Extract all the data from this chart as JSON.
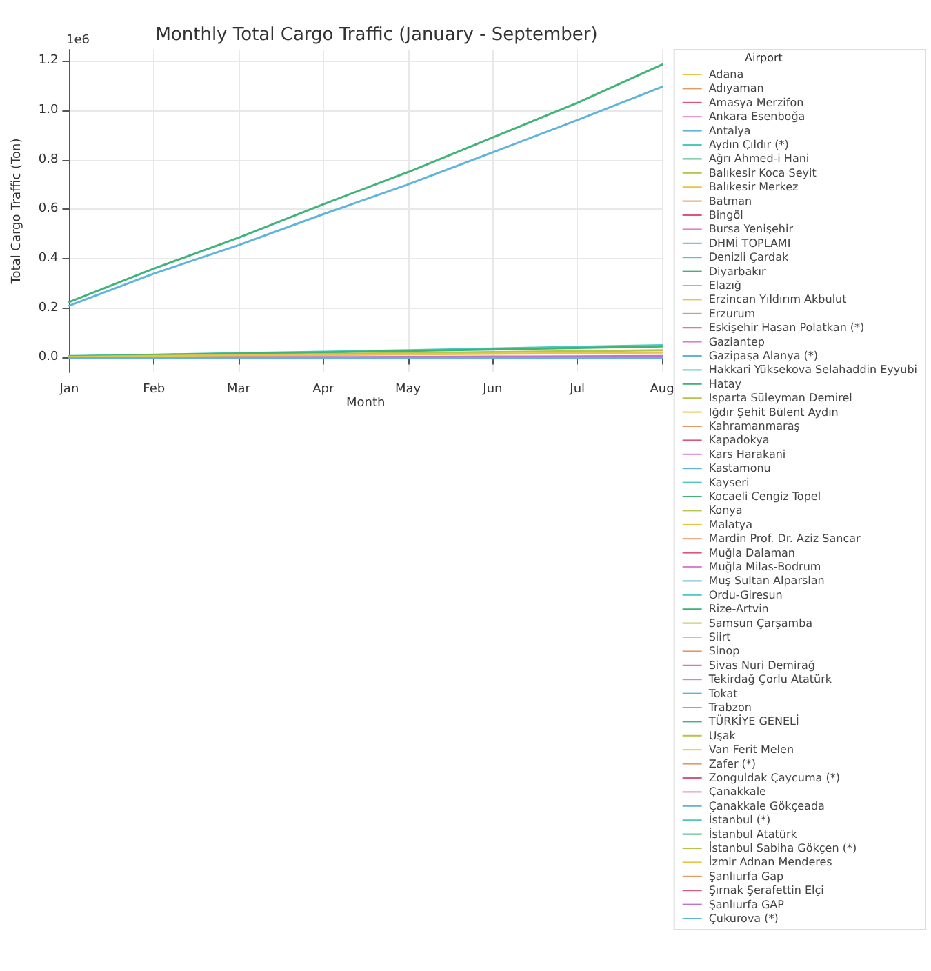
{
  "chart_data": {
    "type": "line",
    "title": "Monthly Total Cargo Traffic (January - September)",
    "xlabel": "Month",
    "ylabel": "Total Cargo Traffic (Ton)",
    "legend_title": "Airport",
    "annotations": [
      "1e6"
    ],
    "categories": [
      "Jan",
      "Feb",
      "Mar",
      "Apr",
      "May",
      "Jun",
      "Jul",
      "Aug"
    ],
    "ylim": [
      -0.06,
      1.245
    ],
    "yticks": [
      {
        "value": 0,
        "label": "0.0"
      },
      {
        "value": 0.2,
        "label": "0.2"
      },
      {
        "value": 0.4,
        "label": "0.4"
      },
      {
        "value": 0.6,
        "label": "0.6"
      },
      {
        "value": 0.8,
        "label": "0.8"
      },
      {
        "value": 1,
        "label": "1.0"
      },
      {
        "value": 1.2,
        "label": "1.2"
      }
    ],
    "grid": true,
    "legend": "right",
    "marker": "none",
    "line_style": "solid",
    "series": [
      {
        "name": "Adana",
        "color": "#e8c547",
        "values": [
          null,
          null,
          null,
          null,
          null,
          null,
          null,
          null
        ]
      },
      {
        "name": "Adıyaman",
        "color": "#e59866",
        "values": [
          null,
          null,
          null,
          null,
          null,
          null,
          null,
          null
        ]
      },
      {
        "name": "Amasya Merzifon",
        "color": "#d9577a",
        "values": [
          null,
          null,
          null,
          null,
          null,
          null,
          null,
          null
        ]
      },
      {
        "name": "Ankara Esenboğa",
        "color": "#e07fcf",
        "values": [
          null,
          null,
          null,
          null,
          null,
          null,
          null,
          null
        ]
      },
      {
        "name": "Antalya",
        "color": "#5fb4d9",
        "values": [
          null,
          null,
          null,
          null,
          null,
          null,
          null,
          null
        ]
      },
      {
        "name": "Aydın Çıldır (*)",
        "color": "#4ec9c0",
        "values": [
          null,
          null,
          null,
          null,
          null,
          null,
          null,
          null
        ]
      },
      {
        "name": "Ağrı Ahmed-i Hani",
        "color": "#3fb37a",
        "values": [
          null,
          null,
          null,
          null,
          null,
          null,
          null,
          null
        ]
      },
      {
        "name": "Balıkesir Koca Seyit",
        "color": "#b5c44a",
        "values": [
          null,
          null,
          null,
          null,
          null,
          null,
          null,
          null
        ]
      },
      {
        "name": "Balıkesir Merkez",
        "color": "#e8c547",
        "values": [
          null,
          null,
          null,
          null,
          null,
          null,
          null,
          null
        ]
      },
      {
        "name": "Batman",
        "color": "#e59866",
        "values": [
          null,
          null,
          null,
          null,
          null,
          null,
          null,
          null
        ]
      },
      {
        "name": "Bingöl",
        "color": "#d9577a",
        "values": [
          null,
          null,
          null,
          null,
          null,
          null,
          null,
          null
        ]
      },
      {
        "name": "Bursa Yenişehir",
        "color": "#e07fcf",
        "values": [
          null,
          null,
          null,
          null,
          null,
          null,
          null,
          null
        ]
      },
      {
        "name": "DHMİ TOPLAMI",
        "color": "#5fb4d9",
        "values": [
          0.21,
          0.34,
          0.455,
          0.58,
          0.7,
          0.83,
          0.96,
          1.095
        ]
      },
      {
        "name": "Denizli Çardak",
        "color": "#4ec9c0",
        "values": [
          null,
          null,
          null,
          null,
          null,
          null,
          null,
          null
        ]
      },
      {
        "name": "Diyarbakır",
        "color": "#3fb37a",
        "values": [
          null,
          null,
          null,
          null,
          null,
          null,
          null,
          null
        ]
      },
      {
        "name": "Elazığ",
        "color": "#b5c44a",
        "values": [
          null,
          null,
          null,
          null,
          null,
          null,
          null,
          null
        ]
      },
      {
        "name": "Erzincan Yıldırım Akbulut",
        "color": "#e8c547",
        "values": [
          null,
          null,
          null,
          null,
          null,
          null,
          null,
          null
        ]
      },
      {
        "name": "Erzurum",
        "color": "#e59866",
        "values": [
          null,
          null,
          null,
          null,
          null,
          null,
          null,
          null
        ]
      },
      {
        "name": "Eskişehir Hasan Polatkan (*)",
        "color": "#d9577a",
        "values": [
          null,
          null,
          null,
          null,
          null,
          null,
          null,
          null
        ]
      },
      {
        "name": "Gaziantep",
        "color": "#e07fcf",
        "values": [
          null,
          null,
          null,
          null,
          null,
          null,
          null,
          null
        ]
      },
      {
        "name": "Gazipaşa Alanya (*)",
        "color": "#5fb4d9",
        "values": [
          null,
          null,
          null,
          null,
          null,
          null,
          null,
          null
        ]
      },
      {
        "name": "Hakkari Yüksekova Selahaddin Eyyubi",
        "color": "#4ec9c0",
        "values": [
          null,
          null,
          null,
          null,
          null,
          null,
          null,
          null
        ]
      },
      {
        "name": "Hatay",
        "color": "#3fb37a",
        "values": [
          null,
          null,
          null,
          null,
          null,
          null,
          null,
          null
        ]
      },
      {
        "name": "Isparta Süleyman Demirel",
        "color": "#b5c44a",
        "values": [
          null,
          null,
          null,
          null,
          null,
          null,
          null,
          null
        ]
      },
      {
        "name": "Iğdır Şehit Bülent Aydın",
        "color": "#e8c547",
        "values": [
          null,
          null,
          null,
          null,
          null,
          null,
          null,
          null
        ]
      },
      {
        "name": "Kahramanmaraş",
        "color": "#e59866",
        "values": [
          null,
          null,
          null,
          null,
          null,
          null,
          null,
          null
        ]
      },
      {
        "name": "Kapadokya",
        "color": "#d9577a",
        "values": [
          null,
          null,
          null,
          null,
          null,
          null,
          null,
          null
        ]
      },
      {
        "name": "Kars Harakani",
        "color": "#e07fcf",
        "values": [
          null,
          null,
          null,
          null,
          null,
          null,
          null,
          null
        ]
      },
      {
        "name": "Kastamonu",
        "color": "#5fb4d9",
        "values": [
          null,
          null,
          null,
          null,
          null,
          null,
          null,
          null
        ]
      },
      {
        "name": "Kayseri",
        "color": "#4ec9c0",
        "values": [
          null,
          null,
          null,
          null,
          null,
          null,
          null,
          null
        ]
      },
      {
        "name": "Kocaeli Cengiz Topel",
        "color": "#3fb37a",
        "values": [
          null,
          null,
          null,
          null,
          null,
          null,
          null,
          null
        ]
      },
      {
        "name": "Konya",
        "color": "#b5c44a",
        "values": [
          null,
          null,
          null,
          null,
          null,
          null,
          null,
          null
        ]
      },
      {
        "name": "Malatya",
        "color": "#e8c547",
        "values": [
          null,
          null,
          null,
          null,
          null,
          null,
          null,
          null
        ]
      },
      {
        "name": "Mardin Prof. Dr. Aziz Sancar",
        "color": "#e59866",
        "values": [
          null,
          null,
          null,
          null,
          null,
          null,
          null,
          null
        ]
      },
      {
        "name": "Muğla Dalaman",
        "color": "#d9577a",
        "values": [
          null,
          null,
          null,
          null,
          null,
          null,
          null,
          null
        ]
      },
      {
        "name": "Muğla Milas-Bodrum",
        "color": "#e07fcf",
        "values": [
          null,
          null,
          null,
          null,
          null,
          null,
          null,
          null
        ]
      },
      {
        "name": "Muş Sultan Alparslan",
        "color": "#5fb4d9",
        "values": [
          null,
          null,
          null,
          null,
          null,
          null,
          null,
          null
        ]
      },
      {
        "name": "Ordu-Giresun",
        "color": "#4ec9c0",
        "values": [
          null,
          null,
          null,
          null,
          null,
          null,
          null,
          null
        ]
      },
      {
        "name": "Rize-Artvin",
        "color": "#3fb37a",
        "values": [
          null,
          null,
          null,
          null,
          null,
          null,
          null,
          null
        ]
      },
      {
        "name": "Samsun Çarşamba",
        "color": "#b5c44a",
        "values": [
          null,
          null,
          null,
          null,
          null,
          null,
          null,
          null
        ]
      },
      {
        "name": "Siirt",
        "color": "#e8c547",
        "values": [
          null,
          null,
          null,
          null,
          null,
          null,
          null,
          null
        ]
      },
      {
        "name": "Sinop",
        "color": "#e59866",
        "values": [
          null,
          null,
          null,
          null,
          null,
          null,
          null,
          null
        ]
      },
      {
        "name": "Sivas Nuri Demirağ",
        "color": "#d9577a",
        "values": [
          null,
          null,
          null,
          null,
          null,
          null,
          null,
          null
        ]
      },
      {
        "name": "Tekirdağ Çorlu Atatürk",
        "color": "#e07fcf",
        "values": [
          null,
          null,
          null,
          null,
          null,
          null,
          null,
          null
        ]
      },
      {
        "name": "Tokat",
        "color": "#5fb4d9",
        "values": [
          null,
          null,
          null,
          null,
          null,
          null,
          null,
          null
        ]
      },
      {
        "name": "Trabzon",
        "color": "#4ec9c0",
        "values": [
          null,
          null,
          null,
          null,
          null,
          null,
          null,
          null
        ]
      },
      {
        "name": "TÜRKİYE GENELİ",
        "color": "#3fb37a",
        "values": [
          0.225,
          0.36,
          0.485,
          0.62,
          0.75,
          0.89,
          1.03,
          1.185
        ]
      },
      {
        "name": "Uşak",
        "color": "#b5c44a",
        "values": [
          null,
          null,
          null,
          null,
          null,
          null,
          null,
          null
        ]
      },
      {
        "name": "Van Ferit Melen",
        "color": "#e8c547",
        "values": [
          null,
          null,
          null,
          null,
          null,
          null,
          null,
          null
        ]
      },
      {
        "name": "Zafer (*)",
        "color": "#e59866",
        "values": [
          null,
          null,
          null,
          null,
          null,
          null,
          null,
          null
        ]
      },
      {
        "name": "Zonguldak Çaycuma (*)",
        "color": "#d9577a",
        "values": [
          null,
          null,
          null,
          null,
          null,
          null,
          null,
          null
        ]
      },
      {
        "name": "Çanakkale",
        "color": "#e07fcf",
        "values": [
          null,
          null,
          null,
          null,
          null,
          null,
          null,
          null
        ]
      },
      {
        "name": "Çanakkale Gökçeada",
        "color": "#5fb4d9",
        "values": [
          null,
          null,
          null,
          null,
          null,
          null,
          null,
          null
        ]
      },
      {
        "name": "İstanbul (*)",
        "color": "#4ec9c0",
        "values": [
          0.006,
          0.012,
          0.018,
          0.024,
          0.03,
          0.037,
          0.044,
          0.05
        ]
      },
      {
        "name": "İstanbul Atatürk",
        "color": "#3fb37a",
        "values": [
          0.005,
          0.01,
          0.016,
          0.021,
          0.027,
          0.033,
          0.039,
          0.045
        ]
      },
      {
        "name": "İstanbul Sabiha Gökçen (*)",
        "color": "#b5c44a",
        "values": [
          0.003,
          0.007,
          0.01,
          0.014,
          0.018,
          0.022,
          0.026,
          0.03
        ]
      },
      {
        "name": "İzmir Adnan Menderes",
        "color": "#e8c547",
        "values": [
          0.002,
          0.005,
          0.008,
          0.01,
          0.013,
          0.015,
          0.018,
          0.02
        ]
      },
      {
        "name": "Şanlıurfa Gap",
        "color": "#e59866",
        "values": [
          null,
          null,
          null,
          null,
          null,
          null,
          null,
          null
        ]
      },
      {
        "name": "Şırnak Şerafettin Elçi",
        "color": "#d9577a",
        "values": [
          null,
          null,
          null,
          null,
          null,
          null,
          null,
          null
        ]
      },
      {
        "name": "Şanlıurfa GAP",
        "color": "#c070d0",
        "values": [
          0,
          0,
          0.001,
          0.002,
          0.003,
          0.004,
          0.005,
          0.006
        ]
      },
      {
        "name": "Çukurova (*)",
        "color": "#5fb4d9",
        "values": [
          0,
          0,
          0,
          0,
          0,
          0,
          0,
          0
        ]
      }
    ]
  }
}
